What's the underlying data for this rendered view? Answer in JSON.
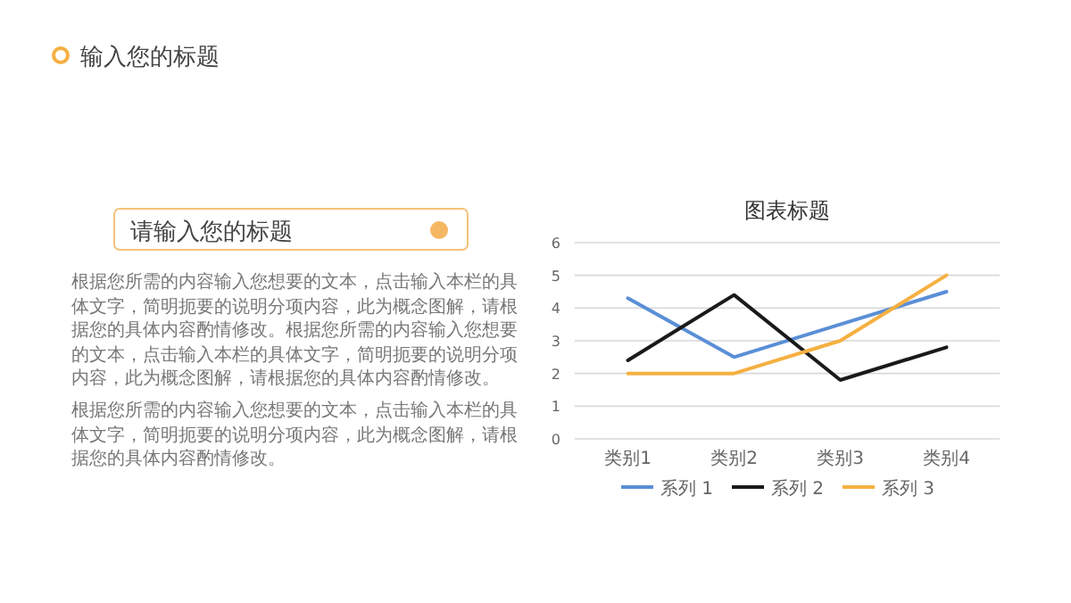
{
  "chart_data": {
    "type": "line",
    "title": "图表标题",
    "categories": [
      "类别1",
      "类别2",
      "类别3",
      "类别4"
    ],
    "series": [
      {
        "name": "系列 1",
        "color": "#5b8fd6",
        "values": [
          4.3,
          2.5,
          3.5,
          4.5
        ]
      },
      {
        "name": "系列 2",
        "color": "#1a1a1a",
        "values": [
          2.4,
          4.4,
          1.8,
          2.8
        ]
      },
      {
        "name": "系列 3",
        "color": "#f5b041",
        "values": [
          2,
          2,
          3,
          5
        ]
      }
    ],
    "ylim": [
      0,
      6
    ],
    "yticks": [
      0,
      1,
      2,
      3,
      4,
      5,
      6
    ],
    "grid": "y",
    "legend": "bottom",
    "annotations": [
      "输入您的标题",
      "请输入您的标题",
      "根据您所需的内容输入您想要的文本，点击输入本栏的具体文字，简明扼要的说明分项内容，此为概念图解，请根据您的具体内容酌情修改。根据您所需的内容输入您想要的文本，点击输入本栏的具体文字，简明扼要的说明分项内容，此为概念图解，请根据您的具体内容酌情修改。",
      "根据您所需的内容输入您想要的文本，点击输入本栏的具体文字，简明扼要的说明分项内容，此为概念图解，请根据您的具体内容酌情修改。"
    ]
  }
}
